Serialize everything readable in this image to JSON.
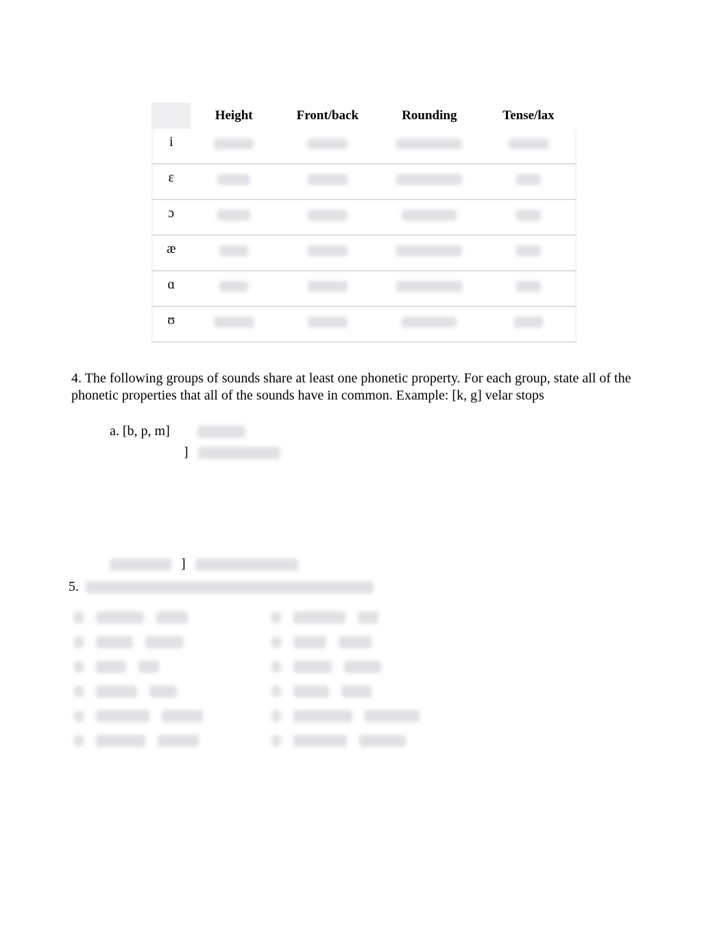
{
  "table": {
    "headers": [
      "Height",
      "Front/back",
      "Rounding",
      "Tense/lax"
    ],
    "rows": [
      {
        "sym": "i",
        "cells_blur_widths": [
          58,
          58,
          96,
          58
        ]
      },
      {
        "sym": "ɛ",
        "cells_blur_widths": [
          48,
          58,
          96,
          36
        ]
      },
      {
        "sym": "ɔ",
        "cells_blur_widths": [
          48,
          58,
          80,
          36
        ]
      },
      {
        "sym": "æ",
        "cells_blur_widths": [
          42,
          58,
          96,
          36
        ]
      },
      {
        "sym": "ɑ",
        "cells_blur_widths": [
          42,
          58,
          96,
          36
        ]
      },
      {
        "sym": "ʊ",
        "cells_blur_widths": [
          58,
          58,
          80,
          42
        ]
      }
    ],
    "col_bg": "#ffffff",
    "divider_color": "#dedede"
  },
  "q4_intro": "4. The following groups of sounds share at least one phonetic property. For each group, state all of the phonetic properties that all of the sounds have in common. Example: [k, g] velar stops",
  "q4": {
    "a_label": "a. [b, p, m]",
    "a_blur_w": 70,
    "b_bracket": "]",
    "b_blur_w": 120,
    "e_lead_blur_w": 90,
    "e_bracket": "]",
    "e_blur_w": 150
  },
  "q5": {
    "num": "5.",
    "heading_blur_w": 420,
    "left": [
      {
        "w1": 70,
        "w2": 46
      },
      {
        "w1": 54,
        "w2": 56
      },
      {
        "w1": 44,
        "w2": 30
      },
      {
        "w1": 60,
        "w2": 40
      },
      {
        "w1": 78,
        "w2": 60
      },
      {
        "w1": 72,
        "w2": 60
      }
    ],
    "right": [
      {
        "w1": 76,
        "w2": 30
      },
      {
        "w1": 48,
        "w2": 48
      },
      {
        "w1": 56,
        "w2": 54
      },
      {
        "w1": 52,
        "w2": 44
      },
      {
        "w1": 86,
        "w2": 80
      },
      {
        "w1": 78,
        "w2": 68
      }
    ]
  },
  "colors": {
    "text": "#000000",
    "blur_fill": "#e1e1e5",
    "page_bg": "#ffffff"
  },
  "fonts": {
    "body_family": "Times New Roman",
    "body_size_pt": 15,
    "header_weight": "bold"
  }
}
